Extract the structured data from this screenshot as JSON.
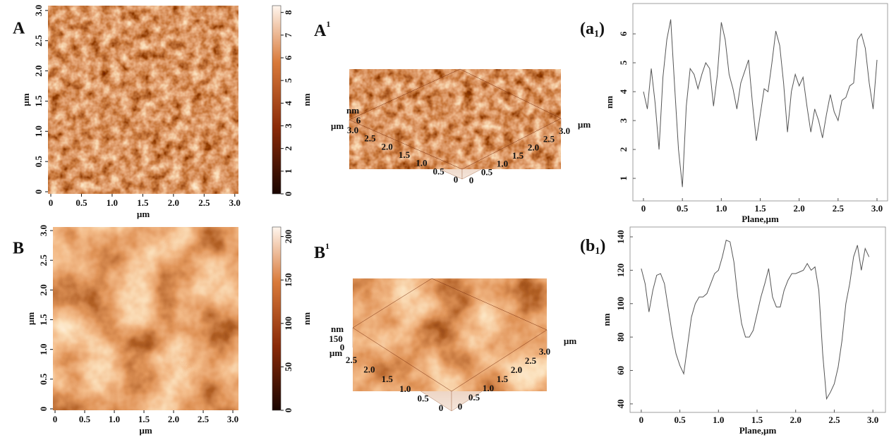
{
  "panels": [
    {
      "label": "A",
      "xlabel": "µm",
      "ylabel": "µm",
      "xlim": [
        -0.046,
        3.06
      ],
      "ylim": [
        -0.035,
        3.08
      ],
      "xticks": [
        0,
        0.5,
        {
          "value": 1,
          "label": "1.0"
        },
        1.5,
        {
          "value": 2,
          "label": "2.0"
        },
        2.5,
        {
          "value": 3,
          "label": "3.0"
        }
      ],
      "yticks": [
        0,
        0.5,
        {
          "value": 1,
          "label": "1.0"
        },
        1.5,
        {
          "value": 2,
          "label": "2.0"
        },
        2.5,
        {
          "value": 3,
          "label": "3.0"
        }
      ],
      "colorbar": {
        "label": "nm",
        "clim": [
          0,
          8.3
        ],
        "ticks": [
          0,
          1,
          2,
          3,
          4,
          5,
          6,
          7,
          8
        ]
      }
    },
    {
      "label": "B",
      "xlabel": "µm",
      "ylabel": "µm",
      "xlim": [
        -0.036,
        3.095
      ],
      "ylim": [
        -0.024,
        3.06
      ],
      "xticks": [
        0,
        0.5,
        {
          "value": 1,
          "label": "1.0"
        },
        1.5,
        {
          "value": 2,
          "label": "2.0"
        },
        2.5,
        {
          "value": 3,
          "label": "3.0"
        }
      ],
      "yticks": [
        0,
        0.5,
        {
          "value": 1,
          "label": "1.0"
        },
        1.5,
        {
          "value": 2,
          "label": "2.0"
        },
        2.5,
        {
          "value": 3,
          "label": "3.0"
        }
      ],
      "colorbar": {
        "label": "nm",
        "clim": [
          0,
          211
        ],
        "ticks": [
          0,
          50,
          100,
          150,
          200
        ]
      }
    }
  ],
  "views3d": [
    {
      "label": "A",
      "sup": "1",
      "z_unit": "nm",
      "z_ticks": [
        "6"
      ],
      "left_unit": "µm",
      "left_ticks": [
        "3.0",
        "2.5",
        "2.0",
        "1.5",
        "1.0",
        "0.5",
        "0"
      ],
      "right_ticks": [
        "0",
        "0.5",
        "1.0",
        "1.5",
        "2.0",
        "2.5",
        "3.0"
      ],
      "right_unit": "µm"
    },
    {
      "label": "B",
      "sup": "1",
      "z_unit": "nm",
      "z_ticks": [
        "150",
        "0"
      ],
      "left_unit": "µm",
      "left_ticks": [
        "2.5",
        "2.0",
        "1.5",
        "1.0",
        "0.5",
        "0"
      ],
      "right_ticks": [
        "0",
        "0.5",
        "1.0",
        "1.5",
        "2.0",
        "2.5",
        "3.0"
      ],
      "right_unit": "µm"
    }
  ],
  "chart_data": [
    {
      "type": "line",
      "title": {
        "main": "(a",
        "sub": "1",
        "end": ")"
      },
      "xlabel": "Plane,µm",
      "ylabel": "nm",
      "xlim": [
        -0.136,
        3.136
      ],
      "ylim": [
        0.22,
        7.05
      ],
      "xticks": [
        0,
        0.5,
        {
          "value": 1,
          "label": "1.0"
        },
        1.5,
        {
          "value": 2,
          "label": "2.0"
        },
        2.5,
        {
          "value": 3,
          "label": "3.0"
        }
      ],
      "yticks": [
        1,
        2,
        3,
        4,
        5,
        6
      ],
      "x": [
        0,
        0.05,
        0.1,
        0.15,
        0.2,
        0.25,
        0.3,
        0.35,
        0.4,
        0.45,
        0.5,
        0.55,
        0.6,
        0.65,
        0.7,
        0.75,
        0.8,
        0.85,
        0.9,
        0.95,
        1,
        1.05,
        1.1,
        1.15,
        1.2,
        1.25,
        1.3,
        1.35,
        1.4,
        1.45,
        1.5,
        1.55,
        1.6,
        1.65,
        1.7,
        1.75,
        1.8,
        1.85,
        1.9,
        1.95,
        2,
        2.05,
        2.1,
        2.15,
        2.2,
        2.25,
        2.3,
        2.35,
        2.4,
        2.45,
        2.5,
        2.55,
        2.6,
        2.65,
        2.7,
        2.75,
        2.8,
        2.85,
        2.9,
        2.95,
        3
      ],
      "series": [
        {
          "color": "#555555",
          "values": [
            4.0,
            3.4,
            4.8,
            3.6,
            2.0,
            4.5,
            5.8,
            6.5,
            4.2,
            2.0,
            0.7,
            3.5,
            4.8,
            4.6,
            4.1,
            4.6,
            5.0,
            4.8,
            3.5,
            4.6,
            6.4,
            5.8,
            4.6,
            4.1,
            3.4,
            4.3,
            4.7,
            5.1,
            3.6,
            2.3,
            3.2,
            4.1,
            4.0,
            5.0,
            6.1,
            5.6,
            4.3,
            2.6,
            4.0,
            4.6,
            4.2,
            4.5,
            3.5,
            2.6,
            3.4,
            3.0,
            2.4,
            3.2,
            3.9,
            3.3,
            3.0,
            3.7,
            3.8,
            4.2,
            4.3,
            5.8,
            6.0,
            5.5,
            4.3,
            3.4,
            5.1
          ]
        }
      ]
    },
    {
      "type": "line",
      "title": {
        "main": "(b",
        "sub": "1",
        "end": ")"
      },
      "xlabel": "Plane,µm",
      "ylabel": "nm",
      "xlim": [
        -0.145,
        3.163
      ],
      "ylim": [
        34.9,
        145.9
      ],
      "xticks": [
        0,
        0.5,
        {
          "value": 1,
          "label": "1.0"
        },
        1.5,
        {
          "value": 2,
          "label": "2.0"
        },
        2.5,
        {
          "value": 3,
          "label": "3.0"
        }
      ],
      "yticks": [
        40,
        60,
        80,
        100,
        120,
        140
      ],
      "x": [
        0,
        0.05,
        0.1,
        0.15,
        0.2,
        0.25,
        0.3,
        0.35,
        0.4,
        0.45,
        0.5,
        0.55,
        0.6,
        0.65,
        0.7,
        0.75,
        0.8,
        0.85,
        0.9,
        0.95,
        1,
        1.05,
        1.1,
        1.15,
        1.2,
        1.25,
        1.3,
        1.35,
        1.4,
        1.45,
        1.5,
        1.55,
        1.6,
        1.65,
        1.7,
        1.75,
        1.8,
        1.85,
        1.9,
        1.95,
        2,
        2.05,
        2.1,
        2.15,
        2.2,
        2.25,
        2.3,
        2.35,
        2.4,
        2.45,
        2.5,
        2.55,
        2.6,
        2.65,
        2.7,
        2.75,
        2.8,
        2.85,
        2.9,
        2.95
      ],
      "series": [
        {
          "color": "#555555",
          "values": [
            121,
            112,
            95,
            108,
            117,
            118,
            112,
            97,
            82,
            70,
            63,
            58,
            75,
            92,
            100,
            104,
            104,
            106,
            112,
            118,
            120,
            128,
            138,
            137,
            125,
            104,
            88,
            80,
            80,
            84,
            94,
            104,
            112,
            121,
            104,
            98,
            98,
            108,
            114,
            118,
            118,
            119,
            120,
            124,
            120,
            122,
            108,
            70,
            43,
            47,
            52,
            62,
            78,
            100,
            112,
            128,
            135,
            120,
            133,
            128
          ]
        }
      ]
    }
  ]
}
